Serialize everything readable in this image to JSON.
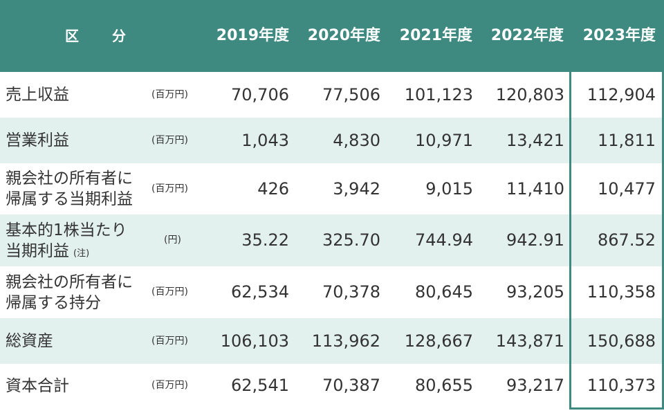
{
  "chart_data": {
    "type": "table",
    "header": {
      "label": "区　分",
      "years": [
        "2019年度",
        "2020年度",
        "2021年度",
        "2022年度",
        "2023年度"
      ]
    },
    "rows": [
      {
        "name": [
          "売上収益"
        ],
        "note": "",
        "unit": "(百万円)",
        "values": [
          "70,706",
          "77,506",
          "101,123",
          "120,803",
          "112,904"
        ]
      },
      {
        "name": [
          "営業利益"
        ],
        "note": "",
        "unit": "(百万円)",
        "values": [
          "1,043",
          "4,830",
          "10,971",
          "13,421",
          "11,811"
        ]
      },
      {
        "name": [
          "親会社の所有者に",
          "帰属する当期利益"
        ],
        "note": "",
        "unit": "(百万円)",
        "values": [
          "426",
          "3,942",
          "9,015",
          "11,410",
          "10,477"
        ]
      },
      {
        "name": [
          "基本的1株当たり",
          "当期利益"
        ],
        "note": "(注)",
        "unit": "(円)",
        "values": [
          "35.22",
          "325.70",
          "744.94",
          "942.91",
          "867.52"
        ]
      },
      {
        "name": [
          "親会社の所有者に",
          "帰属する持分"
        ],
        "note": "",
        "unit": "(百万円)",
        "values": [
          "62,534",
          "70,378",
          "80,645",
          "93,205",
          "110,358"
        ]
      },
      {
        "name": [
          "総資産"
        ],
        "note": "",
        "unit": "(百万円)",
        "values": [
          "106,103",
          "113,962",
          "128,667",
          "143,871",
          "150,688"
        ]
      },
      {
        "name": [
          "資本合計"
        ],
        "note": "",
        "unit": "(百万円)",
        "values": [
          "62,541",
          "70,387",
          "80,655",
          "93,217",
          "110,373"
        ]
      }
    ],
    "highlight_column": "2023年度"
  },
  "colors": {
    "header_bg": "#3e8a80",
    "header_text": "#ffffff",
    "alt_row_bg": "#e3f1ee",
    "highlight_border": "#3e8a80",
    "text": "#333333"
  }
}
